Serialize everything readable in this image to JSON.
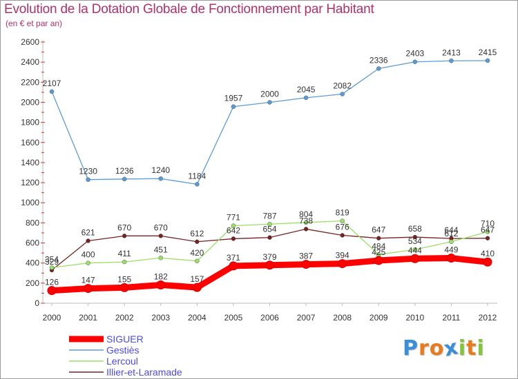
{
  "chart_data": {
    "type": "line",
    "title": "Evolution de la Dotation Globale de Fonctionnement par Habitant",
    "subtitle": "(en € et par an)",
    "xlabel": "",
    "ylabel": "",
    "ylim": [
      0,
      2600
    ],
    "ytick_step": 200,
    "grid": false,
    "legend": "bottom-left",
    "categories": [
      "2000",
      "2001",
      "2002",
      "2003",
      "2004",
      "2005",
      "2006",
      "2007",
      "2008",
      "2009",
      "2010",
      "2011",
      "2012"
    ],
    "series": [
      {
        "name": "SIGUER",
        "color": "#ff0000",
        "values": [
          126,
          147,
          155,
          182,
          157,
          371,
          379,
          387,
          394,
          425,
          444,
          449,
          410
        ]
      },
      {
        "name": "Gestiès",
        "color": "#5b9bd5",
        "values": [
          2107,
          1230,
          1236,
          1240,
          1184,
          1957,
          2000,
          2045,
          2082,
          2336,
          2403,
          2413,
          2415
        ]
      },
      {
        "name": "Lercoul",
        "color": "#99e066",
        "values": [
          354,
          400,
          411,
          451,
          420,
          771,
          787,
          804,
          819,
          484,
          534,
          612,
          710
        ]
      },
      {
        "name": "Illier-et-Laramade",
        "color": "#772222",
        "values": [
          329,
          621,
          670,
          670,
          612,
          642,
          654,
          738,
          676,
          647,
          658,
          644,
          647
        ]
      }
    ]
  },
  "logo": {
    "letters": [
      "P",
      "r",
      "o",
      "x",
      "i",
      "t",
      "i"
    ],
    "colors": [
      "#3a8fd8",
      "#e87b1e",
      "#e87b1e",
      "#3a8fd8",
      "#84c43a",
      "#e87b1e",
      "#84c43a"
    ]
  }
}
